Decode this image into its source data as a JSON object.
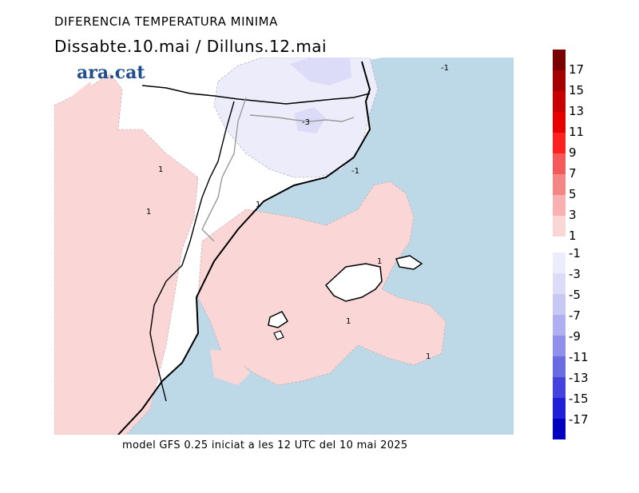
{
  "title": "DIFERENCIA TEMPERATURA MINIMA",
  "subtitle": "Dissabte.10.mai  /  Dilluns.12.mai",
  "brand": "ara.cat",
  "footer": "model GFS 0.25 iniciat a les 12 UTC del 10 mai 2025",
  "map_labels": {
    "l1": "1",
    "l2": "1",
    "l3": "-3",
    "l4": "-1",
    "l5": "1",
    "l6": "1",
    "l7": "1",
    "l8": "1",
    "l9": "-1"
  },
  "colors": {
    "sea": "#bdd9e8",
    "warm_light": "#fbd6d6",
    "cool_light": "#ececfb",
    "cool_mid": "#dcdcf8",
    "land": "#ffffff"
  },
  "legend": {
    "positive": [
      {
        "label": "17",
        "color": "#7a0000"
      },
      {
        "label": "15",
        "color": "#a50000"
      },
      {
        "label": "13",
        "color": "#c80000"
      },
      {
        "label": "11",
        "color": "#e60000"
      },
      {
        "label": "9",
        "color": "#ff2020"
      },
      {
        "label": "7",
        "color": "#f45a5a"
      },
      {
        "label": "5",
        "color": "#f48686"
      },
      {
        "label": "3",
        "color": "#f8b0b0"
      },
      {
        "label": "1",
        "color": "#fbd6d6"
      }
    ],
    "negative": [
      {
        "label": "-1",
        "color": "#ececfb"
      },
      {
        "label": "-3",
        "color": "#dcdcf8"
      },
      {
        "label": "-5",
        "color": "#c8c8f4"
      },
      {
        "label": "-7",
        "color": "#b0b0f0"
      },
      {
        "label": "-9",
        "color": "#9090ea"
      },
      {
        "label": "-11",
        "color": "#6a6ae2"
      },
      {
        "label": "-13",
        "color": "#4444dc"
      },
      {
        "label": "-15",
        "color": "#2020d6"
      },
      {
        "label": "-17",
        "color": "#0000c0"
      }
    ]
  }
}
